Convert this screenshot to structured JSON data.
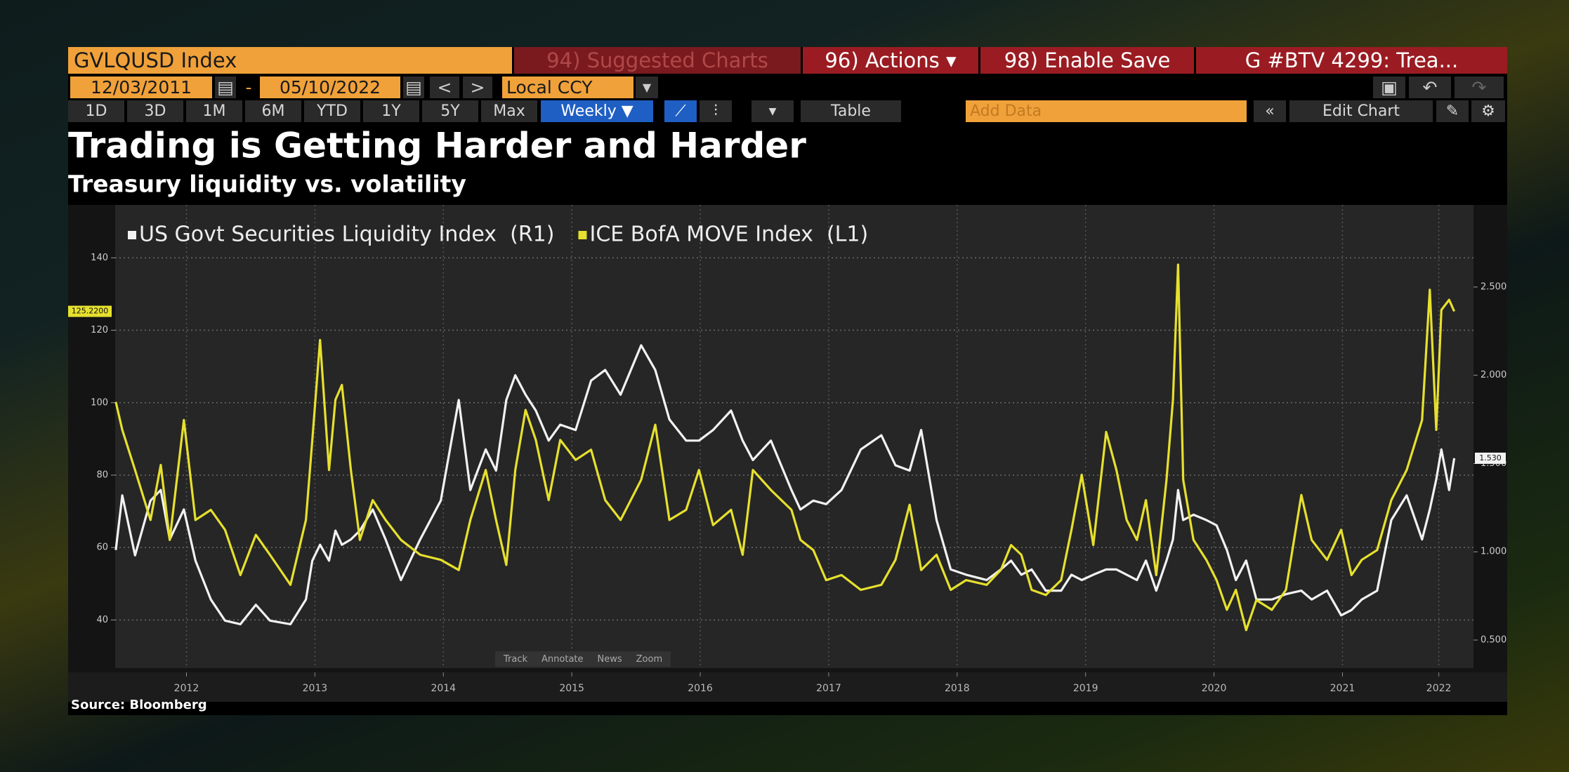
{
  "toolbar": {
    "security": "GVLQUSD Index",
    "menus": [
      "94) Suggested Charts",
      "96) Actions ▾",
      "98) Enable Save",
      "G #BTV 4299: Trea..."
    ],
    "start_date": "12/03/2011",
    "date_separator": "-",
    "end_date": "05/10/2022",
    "currency": "Local CCY",
    "ranges": [
      "1D",
      "3D",
      "1M",
      "6M",
      "YTD",
      "1Y",
      "5Y",
      "Max"
    ],
    "frequency": "Weekly ▼",
    "table": "Table",
    "add_data": "Add Data",
    "edit_chart": "Edit Chart"
  },
  "chart_data": {
    "type": "line",
    "title": "Trading is Getting Harder and Harder",
    "subtitle": "Treasury liquidity vs. volatility",
    "x": [
      2011.95,
      2012.0,
      2012.1,
      2012.22,
      2012.3,
      2012.37,
      2012.48,
      2012.57,
      2012.69,
      2012.8,
      2012.92,
      2013.04,
      2013.15,
      2013.31,
      2013.43,
      2013.48,
      2013.54,
      2013.61,
      2013.66,
      2013.71,
      2013.78,
      2013.85,
      2013.95,
      2014.05,
      2014.17,
      2014.32,
      2014.48,
      2014.62,
      2014.71,
      2014.83,
      2014.91,
      2014.99,
      2015.06,
      2015.14,
      2015.22,
      2015.32,
      2015.41,
      2015.53,
      2015.65,
      2015.76,
      2015.88,
      2016.04,
      2016.15,
      2016.26,
      2016.39,
      2016.49,
      2016.6,
      2016.74,
      2016.83,
      2016.91,
      2017.05,
      2017.21,
      2017.28,
      2017.38,
      2017.48,
      2017.6,
      2017.75,
      2017.91,
      2018.02,
      2018.13,
      2018.22,
      2018.34,
      2018.45,
      2018.57,
      2018.73,
      2018.84,
      2018.92,
      2019.0,
      2019.08,
      2019.19,
      2019.31,
      2019.39,
      2019.47,
      2019.56,
      2019.66,
      2019.74,
      2019.82,
      2019.9,
      2019.97,
      2020.05,
      2020.13,
      2020.18,
      2020.22,
      2020.26,
      2020.34,
      2020.44,
      2020.52,
      2020.6,
      2020.67,
      2020.75,
      2020.83,
      2020.95,
      2021.06,
      2021.18,
      2021.26,
      2021.38,
      2021.49,
      2021.57,
      2021.65,
      2021.77,
      2021.88,
      2022.0,
      2022.12,
      2022.18,
      2022.23,
      2022.27,
      2022.33,
      2022.37
    ],
    "xlim": [
      2011.945,
      2022.52
    ],
    "xticks": [
      {
        "value": 2012.5,
        "label": "2012"
      },
      {
        "value": 2013.5,
        "label": "2013"
      },
      {
        "value": 2014.5,
        "label": "2014"
      },
      {
        "value": 2015.5,
        "label": "2015"
      },
      {
        "value": 2016.5,
        "label": "2016"
      },
      {
        "value": 2017.5,
        "label": "2017"
      },
      {
        "value": 2018.5,
        "label": "2018"
      },
      {
        "value": 2019.5,
        "label": "2019"
      },
      {
        "value": 2020.5,
        "label": "2020"
      },
      {
        "value": 2021.5,
        "label": "2021"
      },
      {
        "value": 2022.25,
        "label": "2022"
      }
    ],
    "ylim": [
      26.7,
      154.6
    ],
    "yticks": [
      40,
      60,
      80,
      100,
      120,
      140
    ],
    "y2lim": [
      0.341,
      2.965
    ],
    "y2ticks": [
      {
        "value": 0.5,
        "label": "0.500"
      },
      {
        "value": 1.0,
        "label": "1.000"
      },
      {
        "value": 1.5,
        "label": "1.500"
      },
      {
        "value": 2.0,
        "label": "2.000"
      },
      {
        "value": 2.5,
        "label": "2.500"
      }
    ],
    "series": [
      {
        "name": "US Govt Securities Liquidity Index  (R1)",
        "color": "#f2f2f2",
        "axis": "y2",
        "values": [
          1.01,
          1.32,
          0.98,
          1.29,
          1.35,
          1.07,
          1.24,
          0.95,
          0.73,
          0.61,
          0.59,
          0.7,
          0.61,
          0.59,
          0.73,
          0.95,
          1.04,
          0.95,
          1.12,
          1.04,
          1.07,
          1.12,
          1.24,
          1.07,
          0.84,
          1.07,
          1.29,
          1.86,
          1.35,
          1.58,
          1.46,
          1.86,
          2.0,
          1.89,
          1.8,
          1.63,
          1.72,
          1.69,
          1.97,
          2.03,
          1.89,
          2.17,
          2.03,
          1.75,
          1.63,
          1.63,
          1.69,
          1.8,
          1.63,
          1.52,
          1.63,
          1.35,
          1.24,
          1.29,
          1.27,
          1.35,
          1.58,
          1.66,
          1.49,
          1.46,
          1.69,
          1.18,
          0.9,
          0.87,
          0.84,
          0.9,
          0.95,
          0.87,
          0.9,
          0.78,
          0.78,
          0.87,
          0.84,
          0.87,
          0.9,
          0.9,
          0.87,
          0.84,
          0.95,
          0.78,
          0.95,
          1.07,
          1.35,
          1.18,
          1.21,
          1.18,
          1.15,
          1.01,
          0.84,
          0.95,
          0.73,
          0.73,
          0.76,
          0.78,
          0.73,
          0.78,
          0.64,
          0.67,
          0.73,
          0.78,
          1.18,
          1.32,
          1.07,
          1.24,
          1.41,
          1.58,
          1.35,
          1.53
        ]
      },
      {
        "name": "ICE BofA MOVE Index  (L1)",
        "color": "#e6e02e",
        "values": [
          100.2,
          92.5,
          81.4,
          67.6,
          82.8,
          62.1,
          95.2,
          67.6,
          70.4,
          64.9,
          52.4,
          63.5,
          58.0,
          49.7,
          67.6,
          89.7,
          117.3,
          81.4,
          100.8,
          104.9,
          81.4,
          62.1,
          73.1,
          67.6,
          62.1,
          58.0,
          56.6,
          53.8,
          67.6,
          81.4,
          67.6,
          55.2,
          81.4,
          98.0,
          89.7,
          73.1,
          89.7,
          84.2,
          87.0,
          73.1,
          67.6,
          78.7,
          93.9,
          67.6,
          70.4,
          81.4,
          66.2,
          70.4,
          58.0,
          81.4,
          75.9,
          70.4,
          62.1,
          59.3,
          51.0,
          52.4,
          48.3,
          49.7,
          56.6,
          71.8,
          53.8,
          58.0,
          48.3,
          51.0,
          49.7,
          53.8,
          60.7,
          58.0,
          48.3,
          46.9,
          51.0,
          64.9,
          80.1,
          60.7,
          91.9,
          81.4,
          67.6,
          62.1,
          73.1,
          52.4,
          78.7,
          100.8,
          138.1,
          78.7,
          62.1,
          56.6,
          51.0,
          42.8,
          48.3,
          37.2,
          45.5,
          42.8,
          48.3,
          74.5,
          62.1,
          56.6,
          64.9,
          52.4,
          56.6,
          59.3,
          73.1,
          81.4,
          95.2,
          131.2,
          92.5,
          125.6,
          128.4,
          125.22
        ]
      }
    ],
    "annotations": [
      {
        "text": "125.2200",
        "value": 125.22
      },
      {
        "text": "1.530",
        "value": 1.53,
        "axis": "y2"
      }
    ],
    "grid": true,
    "legend": "top-left"
  },
  "plot_tools": [
    "Track",
    "Annotate",
    "News",
    "Zoom"
  ],
  "source": "Source: Bloomberg"
}
